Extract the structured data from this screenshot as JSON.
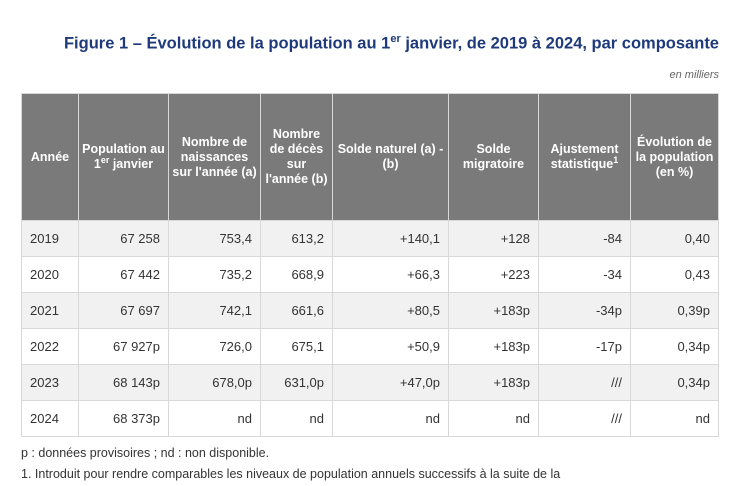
{
  "title": {
    "part1": "Figure 1 – Évolution de la population au 1",
    "sup": "er",
    "part2": " janvier, de 2019 à 2024, par composante"
  },
  "unit": "en milliers",
  "table": {
    "headers": [
      {
        "text": "Année"
      },
      {
        "text": "Population au 1",
        "sup": "er",
        "after": " janvier"
      },
      {
        "text": "Nombre de naissances sur l'année (a)"
      },
      {
        "text": "Nombre de décès sur l'année (b)"
      },
      {
        "text": "Solde naturel (a) - (b)"
      },
      {
        "text": "Solde migratoire"
      },
      {
        "text": "Ajustement statistique",
        "sup": "1"
      },
      {
        "text": "Évolution de la population (en %)"
      }
    ],
    "rows": [
      [
        "2019",
        "67 258",
        "753,4",
        "613,2",
        "+140,1",
        "+128",
        "-84",
        "0,40"
      ],
      [
        "2020",
        "67 442",
        "735,2",
        "668,9",
        "+66,3",
        "+223",
        "-34",
        "0,43"
      ],
      [
        "2021",
        "67 697",
        "742,1",
        "661,6",
        "+80,5",
        "+183p",
        "-34p",
        "0,39p"
      ],
      [
        "2022",
        "67 927p",
        "726,0",
        "675,1",
        "+50,9",
        "+183p",
        "-17p",
        "0,34p"
      ],
      [
        "2023",
        "68 143p",
        "678,0p",
        "631,0p",
        "+47,0p",
        "+183p",
        "///",
        "0,34p"
      ],
      [
        "2024",
        "68 373p",
        "nd",
        "nd",
        "nd",
        "nd",
        "///",
        "nd"
      ]
    ]
  },
  "notes": [
    "p : données provisoires ; nd : non disponible.",
    "1. Introduit pour rendre comparables les niveaux de population annuels successifs à la suite de la"
  ]
}
